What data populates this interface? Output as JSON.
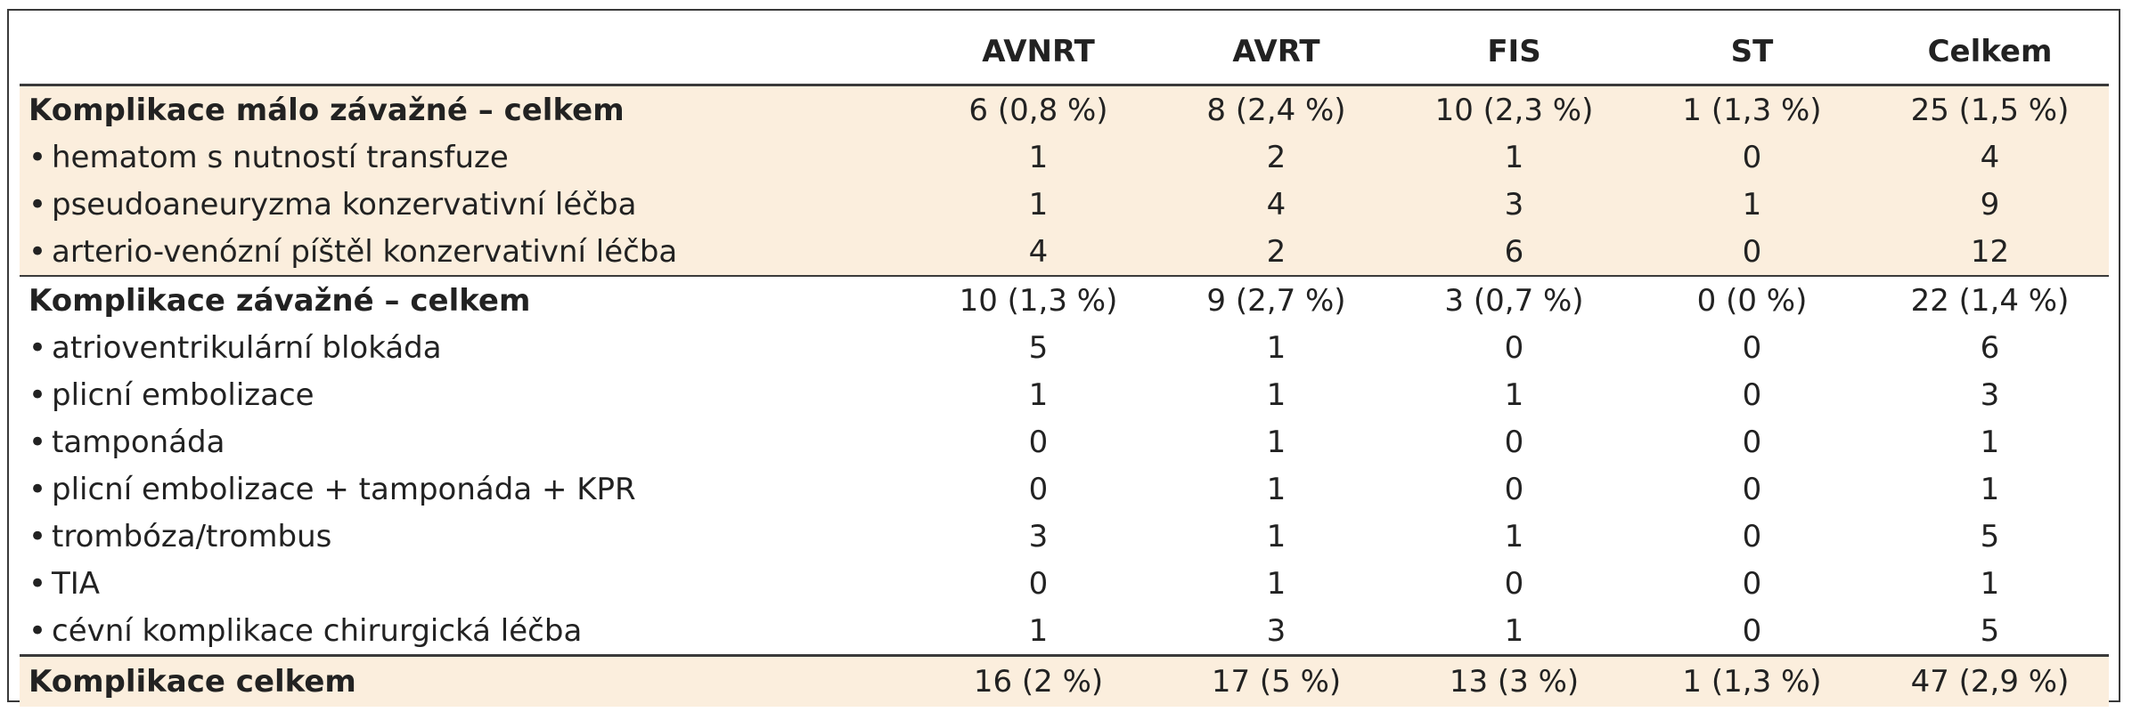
{
  "table": {
    "headers": [
      "",
      "AVNRT",
      "AVRT",
      "FIS",
      "ST",
      "Celkem"
    ],
    "rows": [
      {
        "label": "Komplikace málo závažné – celkem",
        "values": [
          "6 (0,8 %)",
          "8 (2,4 %)",
          "10 (2,3 %)",
          "1 (1,3 %)",
          "25 (1,5 %)"
        ]
      },
      {
        "label": "hematom s nutností transfuze",
        "values": [
          "1",
          "2",
          "1",
          "0",
          "4"
        ]
      },
      {
        "label": "pseudoaneuryzma konzervativní léčba",
        "values": [
          "1",
          "4",
          "3",
          "1",
          "9"
        ]
      },
      {
        "label": "arterio-venózní píštěl konzervativní léčba",
        "values": [
          "4",
          "2",
          "6",
          "0",
          "12"
        ]
      },
      {
        "label": "Komplikace závažné – celkem",
        "values": [
          "10 (1,3 %)",
          "9 (2,7 %)",
          "3 (0,7 %)",
          "0 (0 %)",
          "22 (1,4 %)"
        ]
      },
      {
        "label": "atrioventrikulární blokáda",
        "values": [
          "5",
          "1",
          "0",
          "0",
          "6"
        ]
      },
      {
        "label": "plicní embolizace",
        "values": [
          "1",
          "1",
          "1",
          "0",
          "3"
        ]
      },
      {
        "label": "tamponáda",
        "values": [
          "0",
          "1",
          "0",
          "0",
          "1"
        ]
      },
      {
        "label": "plicní embolizace + tamponáda + KPR",
        "values": [
          "0",
          "1",
          "0",
          "0",
          "1"
        ]
      },
      {
        "label": "trombóza/trombus",
        "values": [
          "3",
          "1",
          "1",
          "0",
          "5"
        ]
      },
      {
        "label": "TIA",
        "values": [
          "0",
          "1",
          "0",
          "0",
          "1"
        ]
      },
      {
        "label": "cévní komplikace chirurgická léčba",
        "values": [
          "1",
          "3",
          "1",
          "0",
          "5"
        ]
      },
      {
        "label": "Komplikace celkem",
        "values": [
          "16 (2 %)",
          "17 (5 %)",
          "13 (3 %)",
          "1 (1,3 %)",
          "47 (2,9 %)"
        ]
      }
    ],
    "bullet_symbol": "•"
  },
  "colors": {
    "shade": "#fbeedd",
    "rule": "#3a3a3a",
    "text": "#222222"
  }
}
